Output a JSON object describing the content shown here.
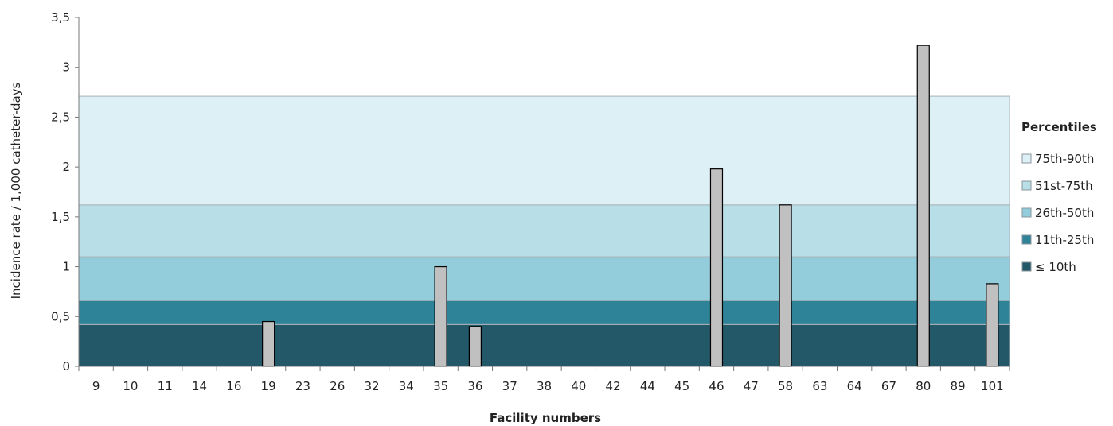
{
  "chart_data": {
    "type": "bar",
    "xlabel": "Facility numbers",
    "ylabel": "Incidence rate / 1,000 catheter-days",
    "ylim": [
      0,
      3.5
    ],
    "y_ticks": [
      "0",
      "0,5",
      "1",
      "1,5",
      "2",
      "2,5",
      "3",
      "3,5"
    ],
    "categories": [
      "9",
      "10",
      "11",
      "14",
      "16",
      "19",
      "23",
      "26",
      "32",
      "34",
      "35",
      "36",
      "37",
      "38",
      "40",
      "42",
      "44",
      "45",
      "46",
      "47",
      "58",
      "63",
      "64",
      "67",
      "80",
      "89",
      "101"
    ],
    "values": [
      0,
      0,
      0,
      0,
      0,
      0.45,
      0,
      0,
      0,
      0,
      1.0,
      0.4,
      0,
      0,
      0,
      0,
      0,
      0,
      1.98,
      0,
      1.62,
      0,
      0,
      0,
      3.22,
      0,
      0.83
    ],
    "bar_color": "#c0c0c0",
    "percentile_bands": [
      {
        "label": "≤ 10th",
        "from": 0,
        "to": 0.42,
        "color": "#235868"
      },
      {
        "label": "11th-25th",
        "from": 0.42,
        "to": 0.66,
        "color": "#2f8399"
      },
      {
        "label": "26th-50th",
        "from": 0.66,
        "to": 1.1,
        "color": "#93cddc"
      },
      {
        "label": "51st-75th",
        "from": 1.1,
        "to": 1.62,
        "color": "#b8dfe8"
      },
      {
        "label": "75th-90th",
        "from": 1.62,
        "to": 2.71,
        "color": "#dcf0f6"
      }
    ],
    "legend": {
      "title": "Percentiles",
      "position": "right",
      "entries": [
        "75th-90th",
        "51st-75th",
        "26th-50th",
        "11th-25th",
        "≤ 10th"
      ]
    },
    "grid": false
  }
}
